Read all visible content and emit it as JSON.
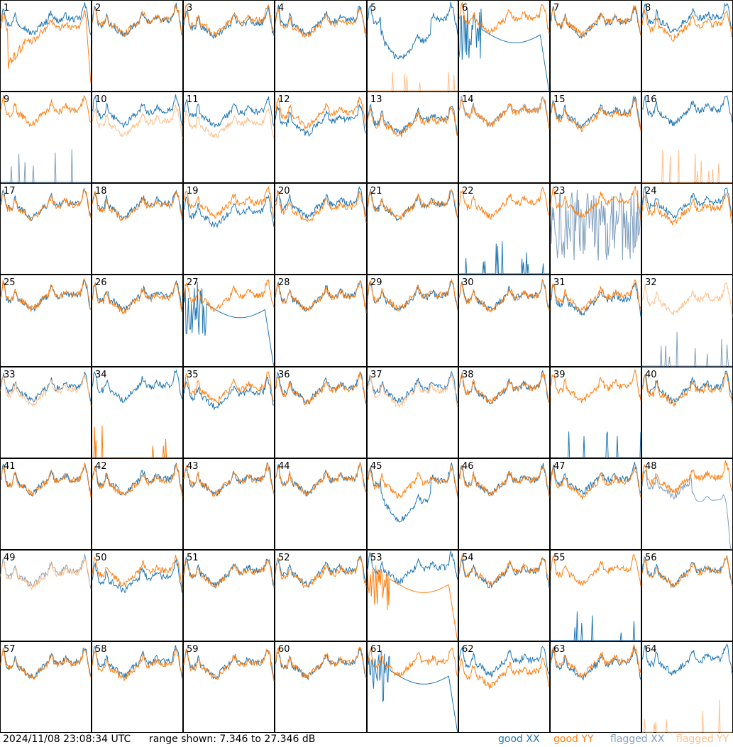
{
  "footer": {
    "timestamp": "2024/11/08 23:08:34 UTC",
    "range": "range shown: 7.346 to 27.346 dB"
  },
  "legend": [
    {
      "label": "good XX",
      "color": "#1f77b4"
    },
    {
      "label": "good YY",
      "color": "#ff7f0e"
    },
    {
      "label": "flagged XX",
      "color": "#7f9fbf"
    },
    {
      "label": "flagged YY",
      "color": "#ffbf8a"
    }
  ],
  "chart_data": {
    "type": "line",
    "unit": "dB",
    "ylim": [
      7.346,
      27.346
    ],
    "grid_rows": 8,
    "grid_cols": 8,
    "panels": [
      {
        "id": 1,
        "xx": "good",
        "yy": "good",
        "xx_shape": "normal",
        "yy_shape": "dropout_start",
        "xx_off": 0.5,
        "yy_off": -1.2
      },
      {
        "id": 2,
        "xx": "good",
        "yy": "good",
        "xx_shape": "normal",
        "yy_shape": "normal",
        "xx_off": 0.2,
        "yy_off": 0.4
      },
      {
        "id": 3,
        "xx": "good",
        "yy": "good",
        "xx_shape": "normal",
        "yy_shape": "normal",
        "xx_off": -0.3,
        "yy_off": 0.3
      },
      {
        "id": 4,
        "xx": "good",
        "yy": "good",
        "xx_shape": "normal",
        "yy_shape": "normal",
        "xx_off": 0.3,
        "yy_off": -0.2
      },
      {
        "id": 5,
        "xx": "good",
        "yy": "flagged",
        "xx_shape": "dip_middle",
        "yy_shape": "spikes",
        "xx_off": 0.6,
        "yy_off": 0
      },
      {
        "id": 6,
        "xx": "good",
        "yy": "good",
        "xx_shape": "broken",
        "yy_shape": "normal",
        "xx_off": 0,
        "yy_off": 0.8
      },
      {
        "id": 7,
        "xx": "good",
        "yy": "good",
        "xx_shape": "normal",
        "yy_shape": "normal",
        "xx_off": 0,
        "yy_off": 0.2
      },
      {
        "id": 8,
        "xx": "good",
        "yy": "good",
        "xx_shape": "normal",
        "yy_shape": "normal",
        "xx_off": 1.0,
        "yy_off": -0.6
      },
      {
        "id": 9,
        "xx": "flagged",
        "yy": "good",
        "xx_shape": "spikes",
        "yy_shape": "normal",
        "xx_off": 0,
        "yy_off": 0.7
      },
      {
        "id": 10,
        "xx": "good",
        "yy": "flagged",
        "xx_shape": "normal",
        "yy_shape": "normal",
        "xx_off": 0.5,
        "yy_off": -1.8
      },
      {
        "id": 11,
        "xx": "good",
        "yy": "flagged",
        "xx_shape": "normal",
        "yy_shape": "normal",
        "xx_off": 0.3,
        "yy_off": -2.2
      },
      {
        "id": 12,
        "xx": "good",
        "yy": "good",
        "xx_shape": "normal",
        "yy_shape": "normal",
        "xx_off": -1.5,
        "yy_off": 0.2
      },
      {
        "id": 13,
        "xx": "good",
        "yy": "good",
        "xx_shape": "normal",
        "yy_shape": "normal",
        "xx_off": -1.2,
        "yy_off": -1.8
      },
      {
        "id": 14,
        "xx": "flagged",
        "yy": "good",
        "xx_shape": "normal",
        "yy_shape": "normal",
        "xx_off": 0.5,
        "yy_off": 0.4
      },
      {
        "id": 15,
        "xx": "good",
        "yy": "good",
        "xx_shape": "normal",
        "yy_shape": "normal",
        "xx_off": 0.1,
        "yy_off": -0.4
      },
      {
        "id": 16,
        "xx": "good",
        "yy": "flagged",
        "xx_shape": "normal",
        "yy_shape": "spikes",
        "xx_off": 0.8,
        "yy_off": 0
      },
      {
        "id": 17,
        "xx": "good",
        "yy": "good",
        "xx_shape": "normal",
        "yy_shape": "normal",
        "xx_off": 0.2,
        "yy_off": 0
      },
      {
        "id": 18,
        "xx": "good",
        "yy": "good",
        "xx_shape": "normal",
        "yy_shape": "normal",
        "xx_off": 0.2,
        "yy_off": -0.2
      },
      {
        "id": 19,
        "xx": "good",
        "yy": "good",
        "xx_shape": "normal",
        "yy_shape": "normal",
        "xx_off": -1.5,
        "yy_off": 0.5
      },
      {
        "id": 20,
        "xx": "good",
        "yy": "good",
        "xx_shape": "normal",
        "yy_shape": "normal",
        "xx_off": 0.4,
        "yy_off": -0.6
      },
      {
        "id": 21,
        "xx": "good",
        "yy": "good",
        "xx_shape": "normal",
        "yy_shape": "normal",
        "xx_off": 0.1,
        "yy_off": 0.1
      },
      {
        "id": 22,
        "xx": "good",
        "yy": "good",
        "xx_shape": "spikes",
        "yy_shape": "normal",
        "xx_off": 0,
        "yy_off": 0.5
      },
      {
        "id": 23,
        "xx": "flagged",
        "yy": "good",
        "xx_shape": "broken_noise",
        "yy_shape": "normal",
        "xx_off": 0,
        "yy_off": 0.6
      },
      {
        "id": 24,
        "xx": "good",
        "yy": "good",
        "xx_shape": "normal",
        "yy_shape": "normal",
        "xx_off": 0.6,
        "yy_off": -0.8
      },
      {
        "id": 25,
        "xx": "good",
        "yy": "good",
        "xx_shape": "normal",
        "yy_shape": "normal",
        "xx_off": 0.2,
        "yy_off": 0.3
      },
      {
        "id": 26,
        "xx": "good",
        "yy": "good",
        "xx_shape": "normal",
        "yy_shape": "normal",
        "xx_off": 0.2,
        "yy_off": -0.2
      },
      {
        "id": 27,
        "xx": "good",
        "yy": "good",
        "xx_shape": "broken",
        "yy_shape": "normal",
        "xx_off": 0,
        "yy_off": 0.2
      },
      {
        "id": 28,
        "xx": "good",
        "yy": "good",
        "xx_shape": "normal",
        "yy_shape": "normal",
        "xx_off": 0.2,
        "yy_off": 0.1
      },
      {
        "id": 29,
        "xx": "good",
        "yy": "good",
        "xx_shape": "normal",
        "yy_shape": "normal",
        "xx_off": 0.1,
        "yy_off": 0.3
      },
      {
        "id": 30,
        "xx": "good",
        "yy": "good",
        "xx_shape": "normal",
        "yy_shape": "normal",
        "xx_off": 0.1,
        "yy_off": 0
      },
      {
        "id": 31,
        "xx": "good",
        "yy": "good",
        "xx_shape": "normal",
        "yy_shape": "normal",
        "xx_off": -0.6,
        "yy_off": 0.1
      },
      {
        "id": 32,
        "xx": "flagged",
        "yy": "flagged",
        "xx_shape": "spikes",
        "yy_shape": "normal",
        "xx_off": 0,
        "yy_off": -0.5
      },
      {
        "id": 33,
        "xx": "good",
        "yy": "flagged",
        "xx_shape": "normal",
        "yy_shape": "normal",
        "xx_off": 0.3,
        "yy_off": -0.3
      },
      {
        "id": 34,
        "xx": "good",
        "yy": "good",
        "xx_shape": "normal",
        "yy_shape": "spikes",
        "xx_off": 0.6,
        "yy_off": 0
      },
      {
        "id": 35,
        "xx": "good",
        "yy": "good",
        "xx_shape": "normal",
        "yy_shape": "normal",
        "xx_off": -1.0,
        "yy_off": 0.1
      },
      {
        "id": 36,
        "xx": "good",
        "yy": "good",
        "xx_shape": "normal",
        "yy_shape": "normal",
        "xx_off": 0.2,
        "yy_off": -0.1
      },
      {
        "id": 37,
        "xx": "good",
        "yy": "flagged",
        "xx_shape": "normal",
        "yy_shape": "normal",
        "xx_off": 0.2,
        "yy_off": -0.6
      },
      {
        "id": 38,
        "xx": "good",
        "yy": "good",
        "xx_shape": "normal",
        "yy_shape": "normal",
        "xx_off": 0.1,
        "yy_off": 0.2
      },
      {
        "id": 39,
        "xx": "good",
        "yy": "good",
        "xx_shape": "spikes",
        "yy_shape": "normal",
        "xx_off": 0,
        "yy_off": 0.4
      },
      {
        "id": 40,
        "xx": "good",
        "yy": "good",
        "xx_shape": "normal",
        "yy_shape": "normal",
        "xx_off": 0.3,
        "yy_off": -0.3
      },
      {
        "id": 41,
        "xx": "good",
        "yy": "good",
        "xx_shape": "normal",
        "yy_shape": "normal",
        "xx_off": 0.1,
        "yy_off": 0
      },
      {
        "id": 42,
        "xx": "good",
        "yy": "good",
        "xx_shape": "normal",
        "yy_shape": "normal",
        "xx_off": 0.1,
        "yy_off": -0.3
      },
      {
        "id": 43,
        "xx": "good",
        "yy": "good",
        "xx_shape": "normal",
        "yy_shape": "normal",
        "xx_off": 0,
        "yy_off": 0
      },
      {
        "id": 44,
        "xx": "good",
        "yy": "good",
        "xx_shape": "normal",
        "yy_shape": "normal",
        "xx_off": 0.1,
        "yy_off": 0.1
      },
      {
        "id": 45,
        "xx": "good",
        "yy": "good",
        "xx_shape": "dip_middle",
        "yy_shape": "normal",
        "xx_off": 0,
        "yy_off": -0.4
      },
      {
        "id": 46,
        "xx": "good",
        "yy": "good",
        "xx_shape": "normal",
        "yy_shape": "normal",
        "xx_off": 0,
        "yy_off": 0
      },
      {
        "id": 47,
        "xx": "good",
        "yy": "good",
        "xx_shape": "normal",
        "yy_shape": "normal",
        "xx_off": 0.2,
        "yy_off": -0.4
      },
      {
        "id": 48,
        "xx": "flagged",
        "yy": "good",
        "xx_shape": "dropout_end",
        "yy_shape": "normal",
        "xx_off": -0.5,
        "yy_off": 0.6
      },
      {
        "id": 49,
        "xx": "flagged",
        "yy": "flagged",
        "xx_shape": "normal",
        "yy_shape": "normal",
        "xx_off": 0,
        "yy_off": -0.3
      },
      {
        "id": 50,
        "xx": "good",
        "yy": "good",
        "xx_shape": "normal",
        "yy_shape": "normal",
        "xx_off": -1.2,
        "yy_off": 0.2
      },
      {
        "id": 51,
        "xx": "good",
        "yy": "good",
        "xx_shape": "normal",
        "yy_shape": "normal",
        "xx_off": 0.1,
        "yy_off": -0.1
      },
      {
        "id": 52,
        "xx": "good",
        "yy": "good",
        "xx_shape": "normal",
        "yy_shape": "normal",
        "xx_off": 0.2,
        "yy_off": -0.2
      },
      {
        "id": 53,
        "xx": "good",
        "yy": "good",
        "xx_shape": "normal",
        "yy_shape": "broken",
        "xx_off": 0.8,
        "yy_off": 0
      },
      {
        "id": 54,
        "xx": "good",
        "yy": "good",
        "xx_shape": "normal",
        "yy_shape": "normal",
        "xx_off": 0,
        "yy_off": 0.2
      },
      {
        "id": 55,
        "xx": "good",
        "yy": "good",
        "xx_shape": "spikes",
        "yy_shape": "normal",
        "xx_off": 0,
        "yy_off": 0.4
      },
      {
        "id": 56,
        "xx": "good",
        "yy": "good",
        "xx_shape": "normal",
        "yy_shape": "normal",
        "xx_off": 0.2,
        "yy_off": 0
      },
      {
        "id": 57,
        "xx": "good",
        "yy": "good",
        "xx_shape": "normal",
        "yy_shape": "normal",
        "xx_off": 0.1,
        "yy_off": -0.1
      },
      {
        "id": 58,
        "xx": "good",
        "yy": "good",
        "xx_shape": "normal",
        "yy_shape": "normal",
        "xx_off": 0.3,
        "yy_off": -0.3
      },
      {
        "id": 59,
        "xx": "good",
        "yy": "good",
        "xx_shape": "normal",
        "yy_shape": "normal",
        "xx_off": 0.1,
        "yy_off": -0.2
      },
      {
        "id": 60,
        "xx": "good",
        "yy": "good",
        "xx_shape": "normal",
        "yy_shape": "normal",
        "xx_off": 0,
        "yy_off": 0.1
      },
      {
        "id": 61,
        "xx": "good",
        "yy": "good",
        "xx_shape": "broken",
        "yy_shape": "normal",
        "xx_off": 0,
        "yy_off": 0.3
      },
      {
        "id": 62,
        "xx": "good",
        "yy": "good",
        "xx_shape": "normal",
        "yy_shape": "normal",
        "xx_off": 0.6,
        "yy_off": -2.0
      },
      {
        "id": 63,
        "xx": "good",
        "yy": "good",
        "xx_shape": "normal",
        "yy_shape": "normal",
        "xx_off": 0,
        "yy_off": 0.4
      },
      {
        "id": 64,
        "xx": "good",
        "yy": "flagged",
        "xx_shape": "normal",
        "yy_shape": "spikes",
        "xx_off": 0.8,
        "yy_off": 0
      }
    ]
  }
}
